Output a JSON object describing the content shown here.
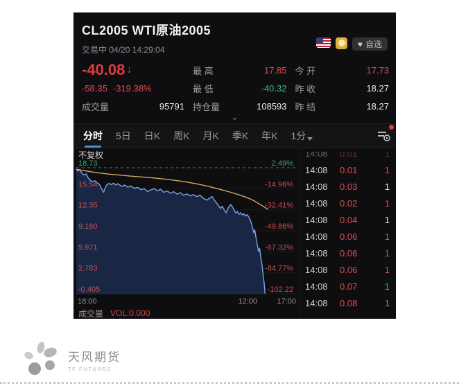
{
  "header": {
    "title": "CL2005  WTI原油2005",
    "status": "交易中",
    "datetime": "04/20 14:29:04",
    "flag_icon": "us-flag-icon",
    "badge_icon": "sun-badge-icon",
    "heart_icon": "heart-icon",
    "watch_label": "自选"
  },
  "quote": {
    "last_price": "-40.08",
    "direction": "↓",
    "change": "-58.35",
    "change_pct": "-319.38%",
    "volume_label": "成交量",
    "volume": "95791",
    "high_label": "最 高",
    "high": "17.85",
    "low_label": "最 低",
    "low": "-40.32",
    "oi_label": "持仓量",
    "oi": "108593",
    "open_label": "今 开",
    "open": "17.73",
    "prev_close_label": "昨 收",
    "prev_close": "18.27",
    "settle_label": "昨 结",
    "settle": "18.27"
  },
  "tabs": [
    {
      "label": "分时",
      "active": true
    },
    {
      "label": "5日",
      "active": false
    },
    {
      "label": "日K",
      "active": false
    },
    {
      "label": "周K",
      "active": false
    },
    {
      "label": "月K",
      "active": false
    },
    {
      "label": "季K",
      "active": false
    },
    {
      "label": "年K",
      "active": false
    },
    {
      "label": "1分",
      "active": false,
      "dropdown": true
    }
  ],
  "chart": {
    "adjust_label": "不复权"
  },
  "chart_data": {
    "type": "line",
    "title": "CL2005 WTI原油2005 分时图",
    "prev_close": 18.27,
    "baseline_dashed_value": 18.73,
    "y_ticks_price": [
      18.73,
      15.54,
      12.35,
      9.16,
      5.971,
      2.783,
      -0.405
    ],
    "y_tick_price_labels": [
      "18.73",
      "15.54",
      "12.35",
      "9.160",
      "5.971",
      "2.783",
      "-0.405"
    ],
    "y_tick_pct_labels": [
      "2.49%",
      "-14.96%",
      "-32.41%",
      "-49.86%",
      "-67.32%",
      "-84.77%",
      "-102.22"
    ],
    "x_labels": [
      {
        "text": "18:00",
        "pos": 0.0
      },
      {
        "text": "12:00",
        "pos": 0.775
      },
      {
        "text": "17:00",
        "pos": 1.0
      }
    ],
    "ylim": [
      -0.405,
      18.73
    ],
    "series": [
      {
        "name": "price",
        "color": "#7aa5e6",
        "fill": "rgba(34,55,100,0.62)",
        "points": [
          [
            0,
            18.55
          ],
          [
            0.008,
            18.2
          ],
          [
            0.015,
            18.45
          ],
          [
            0.025,
            17.95
          ],
          [
            0.035,
            17.6
          ],
          [
            0.045,
            17.8
          ],
          [
            0.055,
            17.15
          ],
          [
            0.065,
            16.8
          ],
          [
            0.075,
            16.6
          ],
          [
            0.085,
            16.75
          ],
          [
            0.095,
            16.45
          ],
          [
            0.105,
            16.2
          ],
          [
            0.115,
            15.6
          ],
          [
            0.125,
            15.0
          ],
          [
            0.132,
            15.7
          ],
          [
            0.14,
            16.15
          ],
          [
            0.15,
            16.35
          ],
          [
            0.16,
            16.15
          ],
          [
            0.17,
            16.4
          ],
          [
            0.18,
            16.1
          ],
          [
            0.19,
            16.3
          ],
          [
            0.2,
            16.05
          ],
          [
            0.21,
            15.9
          ],
          [
            0.22,
            16.1
          ],
          [
            0.235,
            15.8
          ],
          [
            0.25,
            15.95
          ],
          [
            0.265,
            15.6
          ],
          [
            0.28,
            15.75
          ],
          [
            0.295,
            15.4
          ],
          [
            0.31,
            15.55
          ],
          [
            0.325,
            15.1
          ],
          [
            0.34,
            15.35
          ],
          [
            0.355,
            15.55
          ],
          [
            0.37,
            15.25
          ],
          [
            0.385,
            15.45
          ],
          [
            0.4,
            15.0
          ],
          [
            0.415,
            15.2
          ],
          [
            0.43,
            14.85
          ],
          [
            0.445,
            15.1
          ],
          [
            0.46,
            14.7
          ],
          [
            0.475,
            14.95
          ],
          [
            0.49,
            14.55
          ],
          [
            0.505,
            14.75
          ],
          [
            0.52,
            14.45
          ],
          [
            0.535,
            14.65
          ],
          [
            0.55,
            14.35
          ],
          [
            0.565,
            14.55
          ],
          [
            0.58,
            14.1
          ],
          [
            0.595,
            13.8
          ],
          [
            0.61,
            14.15
          ],
          [
            0.62,
            14.35
          ],
          [
            0.63,
            13.8
          ],
          [
            0.64,
            13.4
          ],
          [
            0.65,
            12.95
          ],
          [
            0.658,
            12.55
          ],
          [
            0.666,
            12.9
          ],
          [
            0.675,
            12.35
          ],
          [
            0.684,
            11.9
          ],
          [
            0.69,
            12.35
          ],
          [
            0.698,
            12.9
          ],
          [
            0.705,
            13.15
          ],
          [
            0.712,
            12.8
          ],
          [
            0.72,
            12.35
          ],
          [
            0.728,
            11.85
          ],
          [
            0.735,
            12.1
          ],
          [
            0.743,
            11.65
          ],
          [
            0.75,
            11.9
          ],
          [
            0.758,
            11.55
          ],
          [
            0.765,
            11.75
          ],
          [
            0.773,
            11.4
          ],
          [
            0.78,
            11.6
          ],
          [
            0.788,
            11.2
          ],
          [
            0.795,
            10.75
          ],
          [
            0.8,
            10.2
          ],
          [
            0.805,
            9.55
          ],
          [
            0.81,
            8.85
          ],
          [
            0.815,
            9.3
          ],
          [
            0.82,
            8.2
          ],
          [
            0.826,
            7.1
          ],
          [
            0.832,
            6.0
          ],
          [
            0.837,
            6.5
          ],
          [
            0.842,
            5.1
          ],
          [
            0.848,
            3.9
          ],
          [
            0.853,
            2.5
          ],
          [
            0.858,
            1.1
          ],
          [
            0.862,
            -0.405
          ]
        ]
      },
      {
        "name": "average",
        "color": "#d7a85f",
        "points": [
          [
            0,
            18.5
          ],
          [
            0.05,
            18.2
          ],
          [
            0.1,
            17.95
          ],
          [
            0.15,
            17.75
          ],
          [
            0.2,
            17.6
          ],
          [
            0.25,
            17.45
          ],
          [
            0.3,
            17.32
          ],
          [
            0.35,
            17.18
          ],
          [
            0.4,
            17.02
          ],
          [
            0.45,
            16.82
          ],
          [
            0.5,
            16.58
          ],
          [
            0.55,
            16.28
          ],
          [
            0.6,
            15.92
          ],
          [
            0.65,
            15.5
          ],
          [
            0.7,
            15.05
          ],
          [
            0.75,
            14.55
          ],
          [
            0.78,
            14.18
          ],
          [
            0.8,
            13.9
          ],
          [
            0.82,
            13.55
          ],
          [
            0.84,
            13.15
          ],
          [
            0.86,
            12.72
          ],
          [
            0.875,
            12.4
          ]
        ]
      }
    ],
    "colors": {
      "tick_up": "#3aa76d",
      "tick_down": "#c94f4f",
      "grid": "rgba(255,255,255,0.07)",
      "baseline": "#8f8f8f"
    }
  },
  "trades": {
    "partial_top": {
      "time": "14:08",
      "price": "0.01",
      "qty": "1",
      "qty_color": "red"
    },
    "rows": [
      {
        "time": "14:08",
        "price": "0.01",
        "qty": "1",
        "qty_color": "red"
      },
      {
        "time": "14:08",
        "price": "0.03",
        "qty": "1",
        "qty_color": "white"
      },
      {
        "time": "14:08",
        "price": "0.02",
        "qty": "1",
        "qty_color": "red"
      },
      {
        "time": "14:08",
        "price": "0.04",
        "qty": "1",
        "qty_color": "white"
      },
      {
        "time": "14:08",
        "price": "0.06",
        "qty": "1",
        "qty_color": "red"
      },
      {
        "time": "14:08",
        "price": "0.06",
        "qty": "1",
        "qty_color": "red"
      },
      {
        "time": "14:08",
        "price": "0.06",
        "qty": "1",
        "qty_color": "red"
      },
      {
        "time": "14:08",
        "price": "0.07",
        "qty": "1",
        "qty_color": "green"
      },
      {
        "time": "14:08",
        "price": "0.08",
        "qty": "1",
        "qty_color": "green"
      }
    ],
    "qty_colors": {
      "red": "#e05252",
      "green": "#35b97c",
      "white": "#e8e8e8"
    }
  },
  "vol": {
    "label": "成交量",
    "value": "VOL:0.000"
  },
  "footer": {
    "logo_cn": "天风期货",
    "logo_en": "TF FUTURES"
  },
  "accents": {
    "red": "#e0393f",
    "green": "#2fbf7f",
    "blue_line": "#7aa5e6",
    "avg_line": "#d7a85f",
    "tab_underline": "#4f8be0"
  }
}
